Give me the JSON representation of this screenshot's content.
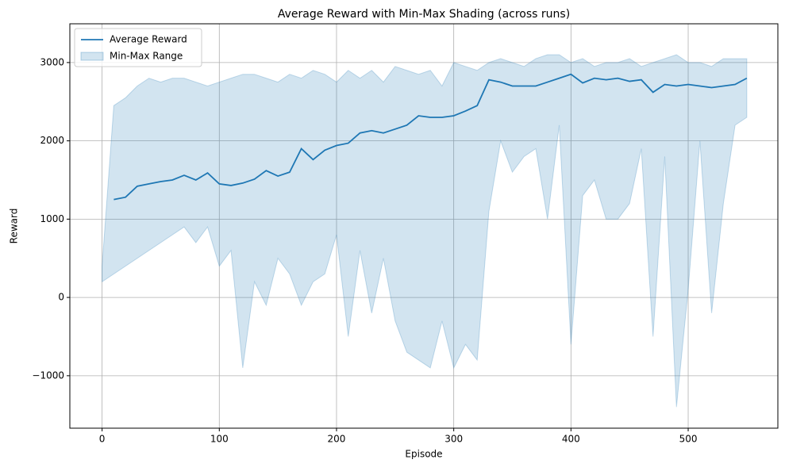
{
  "chart_data": {
    "type": "line",
    "title": "Average Reward with Min-Max Shading (across runs)",
    "xlabel": "Episode",
    "ylabel": "Reward",
    "x": [
      0,
      10,
      20,
      30,
      40,
      50,
      60,
      70,
      80,
      90,
      100,
      110,
      120,
      130,
      140,
      150,
      160,
      170,
      180,
      190,
      200,
      210,
      220,
      230,
      240,
      250,
      260,
      270,
      280,
      290,
      300,
      310,
      320,
      330,
      340,
      350,
      360,
      370,
      380,
      390,
      400,
      410,
      420,
      430,
      440,
      450,
      460,
      470,
      480,
      490,
      500,
      510,
      520,
      530,
      540,
      550
    ],
    "series": [
      {
        "name": "Average Reward",
        "color": "#1f77b4",
        "values": [
          null,
          1250,
          1280,
          1420,
          1450,
          1480,
          1500,
          1560,
          1500,
          1590,
          1450,
          1430,
          1460,
          1510,
          1620,
          1550,
          1600,
          1900,
          1760,
          1880,
          1940,
          1970,
          2100,
          2130,
          2100,
          2150,
          2200,
          2320,
          2300,
          2300,
          2320,
          2380,
          2450,
          2780,
          2750,
          2700,
          2700,
          2700,
          2750,
          2800,
          2850,
          2740,
          2800,
          2780,
          2800,
          2760,
          2780,
          2620,
          2720,
          2700,
          2720,
          2700,
          2680,
          2700,
          2720,
          2800
        ]
      },
      {
        "name": "Min-Max Range",
        "color": "#1f77b4",
        "upper": [
          400,
          2450,
          2550,
          2700,
          2800,
          2750,
          2800,
          2800,
          2750,
          2700,
          2750,
          2800,
          2850,
          2850,
          2800,
          2750,
          2850,
          2800,
          2900,
          2850,
          2750,
          2900,
          2800,
          2900,
          2750,
          2950,
          2900,
          2850,
          2900,
          2700,
          3000,
          2950,
          2900,
          3000,
          3050,
          3000,
          2950,
          3050,
          3100,
          3100,
          3000,
          3050,
          2950,
          3000,
          3000,
          3050,
          2950,
          3000,
          3050,
          3100,
          3000,
          3000,
          2950,
          3050,
          3050,
          3050
        ],
        "lower": [
          200,
          300,
          400,
          500,
          600,
          700,
          800,
          900,
          700,
          900,
          400,
          600,
          -900,
          200,
          -100,
          500,
          300,
          -100,
          200,
          300,
          800,
          -500,
          600,
          -200,
          500,
          -300,
          -700,
          -800,
          -900,
          -300,
          -900,
          -600,
          -800,
          1100,
          2000,
          1600,
          1800,
          1900,
          1000,
          2200,
          -600,
          1300,
          1500,
          1000,
          1000,
          1200,
          1900,
          -500,
          1800,
          -1400,
          100,
          2000,
          -200,
          1200,
          2200,
          2300
        ]
      }
    ],
    "xlim": [
      -27.5,
      576.5
    ],
    "xticks": [
      0,
      100,
      200,
      300,
      400,
      500
    ],
    "ylim": [
      -1670,
      3495
    ],
    "yticks": [
      {
        "value": -1000,
        "label": "−1000"
      },
      0,
      1000,
      2000,
      3000
    ],
    "grid": true,
    "legend": "upper-left"
  }
}
